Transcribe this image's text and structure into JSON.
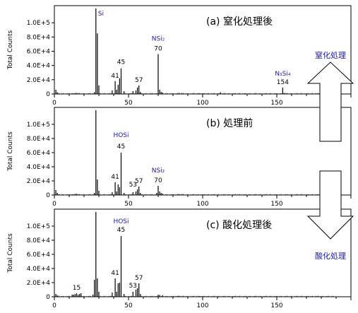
{
  "chart_data": [
    {
      "type": "bar",
      "title": "(a) 窒化処理後",
      "ylabel": "Total Counts",
      "xlim": [
        0,
        200
      ],
      "ylim": [
        0,
        120000
      ],
      "y_ticks": [
        "0",
        "2.0E+4",
        "4.0E+4",
        "6.0E+4",
        "8.0E+4",
        "1.0E+5"
      ],
      "x_ticks": [
        "0",
        "50",
        "100",
        "150"
      ],
      "peaks": [
        {
          "x": 1,
          "y": 6000
        },
        {
          "x": 2,
          "y": 2500
        },
        {
          "x": 12,
          "y": 900
        },
        {
          "x": 14,
          "y": 1200
        },
        {
          "x": 15,
          "y": 1500
        },
        {
          "x": 16,
          "y": 800
        },
        {
          "x": 27,
          "y": 2500
        },
        {
          "x": 28,
          "y": 120000
        },
        {
          "x": 29,
          "y": 85000
        },
        {
          "x": 30,
          "y": 12000
        },
        {
          "x": 39,
          "y": 5000
        },
        {
          "x": 41,
          "y": 18000
        },
        {
          "x": 42,
          "y": 6000
        },
        {
          "x": 43,
          "y": 13000
        },
        {
          "x": 44,
          "y": 22000
        },
        {
          "x": 45,
          "y": 36000
        },
        {
          "x": 47,
          "y": 4000
        },
        {
          "x": 53,
          "y": 4000
        },
        {
          "x": 55,
          "y": 5000
        },
        {
          "x": 56,
          "y": 9000
        },
        {
          "x": 57,
          "y": 12000
        },
        {
          "x": 58,
          "y": 3000
        },
        {
          "x": 70,
          "y": 56000
        },
        {
          "x": 71,
          "y": 6000
        },
        {
          "x": 72,
          "y": 3000
        },
        {
          "x": 73,
          "y": 2000
        },
        {
          "x": 84,
          "y": 1500
        },
        {
          "x": 86,
          "y": 1200
        },
        {
          "x": 98,
          "y": 1000
        },
        {
          "x": 112,
          "y": 2500
        },
        {
          "x": 154,
          "y": 9000
        },
        {
          "x": 155,
          "y": 1500
        }
      ],
      "annotations": [
        {
          "text": "Si",
          "x": 28,
          "y": 110000,
          "color": "blue"
        },
        {
          "text": "45",
          "x": 45,
          "y": 42000,
          "color": "black"
        },
        {
          "text": "41",
          "x": 41,
          "y": 23000,
          "color": "black"
        },
        {
          "text": "57",
          "x": 57,
          "y": 17000,
          "color": "black"
        },
        {
          "text": "NSi₂",
          "x": 70,
          "y": 75000,
          "color": "blue"
        },
        {
          "text": "70",
          "x": 70,
          "y": 61000,
          "color": "black"
        },
        {
          "text": "N₃Si₄",
          "x": 154,
          "y": 26000,
          "color": "blue"
        },
        {
          "text": "154",
          "x": 154,
          "y": 14000,
          "color": "black"
        }
      ]
    },
    {
      "type": "bar",
      "title": "(b) 処理前",
      "ylabel": "Total Counts",
      "xlim": [
        0,
        200
      ],
      "ylim": [
        0,
        120000
      ],
      "y_ticks": [
        "0",
        "2.0E+4",
        "4.0E+4",
        "6.0E+4",
        "8.0E+4",
        "1.0E+5"
      ],
      "x_ticks": [
        "0",
        "50",
        "100",
        "150"
      ],
      "peaks": [
        {
          "x": 1,
          "y": 7000
        },
        {
          "x": 2,
          "y": 3000
        },
        {
          "x": 12,
          "y": 1000
        },
        {
          "x": 14,
          "y": 1500
        },
        {
          "x": 15,
          "y": 1800
        },
        {
          "x": 27,
          "y": 3000
        },
        {
          "x": 28,
          "y": 120000
        },
        {
          "x": 29,
          "y": 22000
        },
        {
          "x": 30,
          "y": 6000
        },
        {
          "x": 39,
          "y": 4000
        },
        {
          "x": 41,
          "y": 18000
        },
        {
          "x": 42,
          "y": 5000
        },
        {
          "x": 43,
          "y": 15000
        },
        {
          "x": 44,
          "y": 11000
        },
        {
          "x": 45,
          "y": 60000
        },
        {
          "x": 47,
          "y": 3000
        },
        {
          "x": 53,
          "y": 4000
        },
        {
          "x": 55,
          "y": 5000
        },
        {
          "x": 56,
          "y": 8000
        },
        {
          "x": 57,
          "y": 12000
        },
        {
          "x": 58,
          "y": 3000
        },
        {
          "x": 69,
          "y": 3000
        },
        {
          "x": 70,
          "y": 13000
        },
        {
          "x": 71,
          "y": 5000
        },
        {
          "x": 72,
          "y": 3000
        },
        {
          "x": 73,
          "y": 2000
        },
        {
          "x": 84,
          "y": 1500
        },
        {
          "x": 86,
          "y": 1200
        }
      ],
      "annotations": [
        {
          "text": "HOSi",
          "x": 45,
          "y": 82000,
          "color": "blue"
        },
        {
          "text": "45",
          "x": 45,
          "y": 66000,
          "color": "black"
        },
        {
          "text": "41",
          "x": 41,
          "y": 23000,
          "color": "black"
        },
        {
          "text": "53",
          "x": 53,
          "y": 12000,
          "color": "black"
        },
        {
          "text": "57",
          "x": 57,
          "y": 17000,
          "color": "black"
        },
        {
          "text": "NSi₂",
          "x": 70,
          "y": 32000,
          "color": "blue"
        },
        {
          "text": "70",
          "x": 70,
          "y": 18000,
          "color": "black"
        }
      ]
    },
    {
      "type": "bar",
      "title": "(c) 酸化処理後",
      "ylabel": "Total Counts",
      "xlim": [
        0,
        200
      ],
      "ylim": [
        0,
        120000
      ],
      "y_ticks": [
        "0",
        "2.0E+4",
        "4.0E+4",
        "6.0E+4",
        "8.0E+4",
        "1.0E+5"
      ],
      "x_ticks": [
        "0",
        "50",
        "100",
        "150"
      ],
      "peaks": [
        {
          "x": 1,
          "y": 4000
        },
        {
          "x": 2,
          "y": 2000
        },
        {
          "x": 12,
          "y": 3000
        },
        {
          "x": 13,
          "y": 3000
        },
        {
          "x": 14,
          "y": 4000
        },
        {
          "x": 15,
          "y": 5000
        },
        {
          "x": 16,
          "y": 3000
        },
        {
          "x": 17,
          "y": 4000
        },
        {
          "x": 18,
          "y": 5000
        },
        {
          "x": 26,
          "y": 3000
        },
        {
          "x": 27,
          "y": 24000
        },
        {
          "x": 28,
          "y": 120000
        },
        {
          "x": 29,
          "y": 26000
        },
        {
          "x": 30,
          "y": 7000
        },
        {
          "x": 39,
          "y": 6000
        },
        {
          "x": 41,
          "y": 26000
        },
        {
          "x": 42,
          "y": 7000
        },
        {
          "x": 43,
          "y": 19000
        },
        {
          "x": 44,
          "y": 20000
        },
        {
          "x": 45,
          "y": 86000
        },
        {
          "x": 47,
          "y": 4000
        },
        {
          "x": 53,
          "y": 7000
        },
        {
          "x": 55,
          "y": 10000
        },
        {
          "x": 56,
          "y": 12000
        },
        {
          "x": 57,
          "y": 19000
        },
        {
          "x": 58,
          "y": 4000
        },
        {
          "x": 70,
          "y": 3000
        },
        {
          "x": 71,
          "y": 2500
        },
        {
          "x": 73,
          "y": 2000
        },
        {
          "x": 84,
          "y": 1500
        },
        {
          "x": 98,
          "y": 1000
        }
      ],
      "annotations": [
        {
          "text": "HOSi",
          "x": 45,
          "y": 104000,
          "color": "blue"
        },
        {
          "text": "45",
          "x": 45,
          "y": 92000,
          "color": "black"
        },
        {
          "text": "41",
          "x": 41,
          "y": 31000,
          "color": "black"
        },
        {
          "text": "15",
          "x": 15,
          "y": 10000,
          "color": "black"
        },
        {
          "text": "53",
          "x": 53,
          "y": 13000,
          "color": "black"
        },
        {
          "text": "57",
          "x": 57,
          "y": 24000,
          "color": "black"
        }
      ]
    }
  ],
  "arrows": {
    "up_label": "窒化処理",
    "down_label": "酸化処理"
  },
  "colors": {
    "label_blue": "#1a1aa8",
    "spectrum": "#000000"
  }
}
